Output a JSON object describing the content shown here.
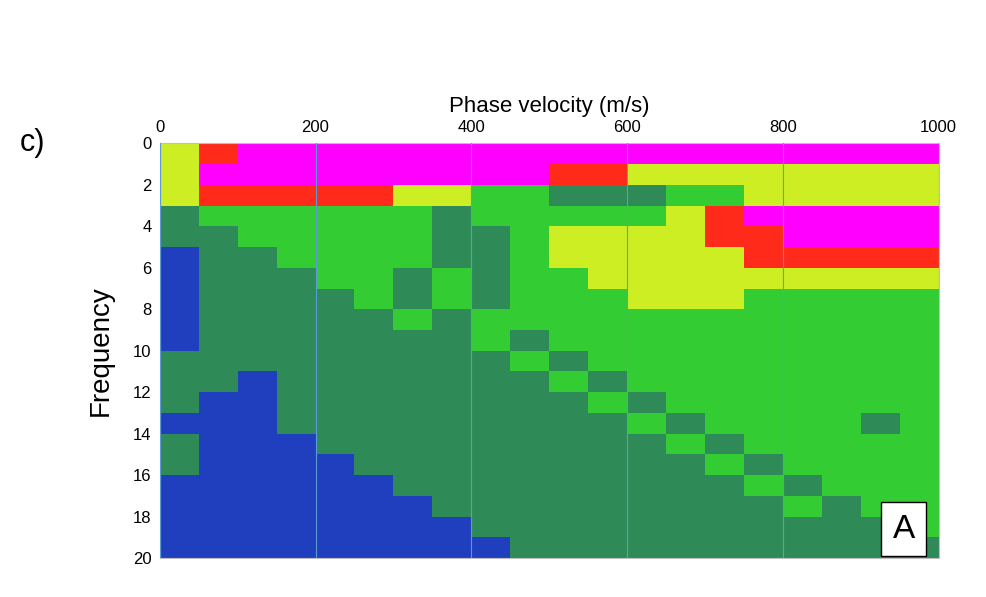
{
  "chart_data": {
    "type": "heatmap",
    "panel_label": "c)",
    "annotation": "A",
    "x_label": "Phase velocity (m/s)",
    "y_label": "Frequency",
    "xlim": [
      0,
      1000
    ],
    "ylim": [
      20,
      0
    ],
    "xticks": [
      0,
      200,
      400,
      600,
      800,
      1000
    ],
    "yticks": [
      0,
      2,
      4,
      6,
      8,
      10,
      12,
      14,
      16,
      18,
      20
    ],
    "grid": "x",
    "x_edges": [
      0,
      50,
      100,
      150,
      200,
      250,
      300,
      350,
      400,
      450,
      500,
      550,
      600,
      650,
      700,
      750,
      800,
      850,
      900,
      950,
      1000
    ],
    "y_edges": [
      0,
      1,
      2,
      3,
      4,
      5,
      6,
      7,
      8,
      9,
      10,
      11,
      12,
      13,
      14,
      15,
      16,
      17,
      18,
      19,
      20
    ],
    "cells": [
      [
        3,
        4,
        5,
        5,
        5,
        5,
        5,
        5,
        5,
        5,
        5,
        5,
        5,
        5,
        5,
        5,
        5,
        5,
        5,
        5
      ],
      [
        3,
        5,
        5,
        5,
        5,
        5,
        5,
        5,
        5,
        5,
        4,
        4,
        3,
        3,
        3,
        3,
        3,
        3,
        3,
        3
      ],
      [
        3,
        4,
        4,
        4,
        4,
        4,
        3,
        3,
        2,
        2,
        1,
        1,
        1,
        2,
        2,
        3,
        3,
        3,
        3,
        3
      ],
      [
        1,
        2,
        2,
        2,
        2,
        2,
        2,
        1,
        2,
        2,
        2,
        2,
        2,
        3,
        4,
        5,
        5,
        5,
        5,
        5
      ],
      [
        1,
        1,
        2,
        2,
        2,
        2,
        2,
        1,
        1,
        2,
        3,
        3,
        3,
        3,
        4,
        4,
        5,
        5,
        5,
        5
      ],
      [
        0,
        1,
        1,
        2,
        2,
        2,
        2,
        1,
        1,
        2,
        3,
        3,
        3,
        3,
        3,
        4,
        4,
        4,
        4,
        4
      ],
      [
        0,
        1,
        1,
        1,
        2,
        2,
        1,
        2,
        1,
        2,
        2,
        3,
        3,
        3,
        3,
        3,
        3,
        3,
        3,
        3
      ],
      [
        0,
        1,
        1,
        1,
        1,
        2,
        1,
        2,
        1,
        2,
        2,
        2,
        3,
        3,
        3,
        2,
        2,
        2,
        2,
        2
      ],
      [
        0,
        1,
        1,
        1,
        1,
        1,
        2,
        1,
        2,
        2,
        2,
        2,
        2,
        2,
        2,
        2,
        2,
        2,
        2,
        2
      ],
      [
        0,
        1,
        1,
        1,
        1,
        1,
        1,
        1,
        2,
        1,
        2,
        2,
        2,
        2,
        2,
        2,
        2,
        2,
        2,
        2
      ],
      [
        1,
        1,
        1,
        1,
        1,
        1,
        1,
        1,
        1,
        2,
        1,
        2,
        2,
        2,
        2,
        2,
        2,
        2,
        2,
        2
      ],
      [
        1,
        1,
        0,
        1,
        1,
        1,
        1,
        1,
        1,
        1,
        2,
        1,
        2,
        2,
        2,
        2,
        2,
        2,
        2,
        2
      ],
      [
        1,
        0,
        0,
        1,
        1,
        1,
        1,
        1,
        1,
        1,
        1,
        2,
        1,
        2,
        2,
        2,
        2,
        2,
        2,
        2
      ],
      [
        0,
        0,
        0,
        1,
        1,
        1,
        1,
        1,
        1,
        1,
        1,
        1,
        2,
        1,
        2,
        2,
        2,
        2,
        1,
        2
      ],
      [
        1,
        0,
        0,
        0,
        1,
        1,
        1,
        1,
        1,
        1,
        1,
        1,
        1,
        2,
        1,
        2,
        2,
        2,
        2,
        2
      ],
      [
        1,
        0,
        0,
        0,
        0,
        1,
        1,
        1,
        1,
        1,
        1,
        1,
        1,
        1,
        2,
        1,
        2,
        2,
        2,
        2
      ],
      [
        0,
        0,
        0,
        0,
        0,
        0,
        1,
        1,
        1,
        1,
        1,
        1,
        1,
        1,
        1,
        2,
        1,
        2,
        2,
        2
      ],
      [
        0,
        0,
        0,
        0,
        0,
        0,
        0,
        1,
        1,
        1,
        1,
        1,
        1,
        1,
        1,
        1,
        2,
        1,
        2,
        2
      ],
      [
        0,
        0,
        0,
        0,
        0,
        0,
        0,
        0,
        1,
        1,
        1,
        1,
        1,
        1,
        1,
        1,
        1,
        1,
        1,
        2
      ],
      [
        0,
        0,
        0,
        0,
        0,
        0,
        0,
        0,
        0,
        1,
        1,
        1,
        1,
        1,
        1,
        1,
        1,
        1,
        1,
        1
      ]
    ]
  }
}
